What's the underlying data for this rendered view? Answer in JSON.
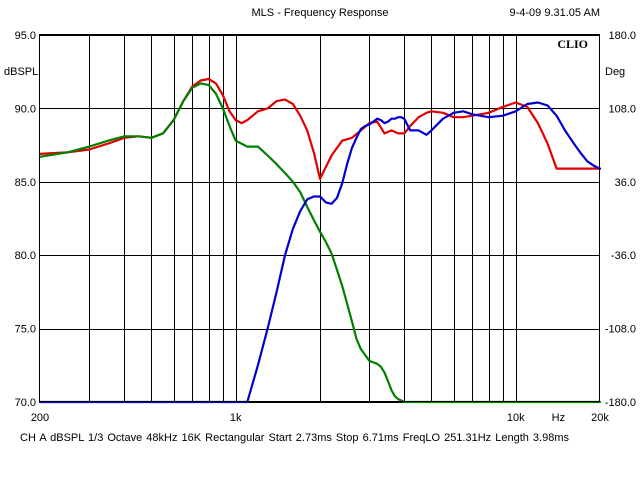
{
  "header": {
    "title": "MLS - Frequency Response",
    "timestamp": "9-4-09 9.31.05 AM"
  },
  "brand": "CLIO",
  "axes": {
    "left_unit": "dBSPL",
    "right_unit": "Deg"
  },
  "footer": {
    "text": "CH A   dBSPL   1/3 Octave   48kHz   16K   Rectangular   Start 2.73ms   Stop 6.71ms   FreqLO 251.31Hz   Length 3.98ms"
  },
  "colors": {
    "red": "#e00000",
    "green": "#008000",
    "blue": "#0000d0",
    "grid": "#000000"
  },
  "chart_data": {
    "type": "line",
    "title": "MLS - Frequency Response",
    "xlabel": "Hz",
    "ylabel": "dBSPL",
    "y2label": "Deg",
    "xscale": "log",
    "xlim": [
      200,
      20000
    ],
    "ylim": [
      70,
      95
    ],
    "y2lim": [
      -180,
      180
    ],
    "grid": true,
    "x_tick_labels": [
      {
        "value": 200,
        "label": "200"
      },
      {
        "value": 1000,
        "label": "1k"
      },
      {
        "value": 10000,
        "label": "10k"
      },
      {
        "value": 14200,
        "label": "Hz"
      },
      {
        "value": 20000,
        "label": "20k"
      }
    ],
    "x_gridlines": [
      300,
      400,
      500,
      600,
      700,
      800,
      900,
      1000,
      2000,
      3000,
      4000,
      5000,
      6000,
      7000,
      8000,
      9000,
      10000
    ],
    "y_ticks": [
      "70.0",
      "75.0",
      "80.0",
      "85.0",
      "90.0",
      "95.0"
    ],
    "y2_ticks": [
      "-180.0",
      "-108.0",
      "-36.0",
      "36.0",
      "108.0",
      "180.0"
    ],
    "series": [
      {
        "color": "red",
        "x": [
          200,
          250,
          300,
          350,
          400,
          450,
          500,
          550,
          600,
          650,
          700,
          750,
          800,
          850,
          900,
          950,
          1000,
          1050,
          1100,
          1150,
          1200,
          1300,
          1400,
          1500,
          1600,
          1700,
          1800,
          1900,
          2000,
          2200,
          2400,
          2600,
          2800,
          3000,
          3200,
          3400,
          3600,
          3800,
          4000,
          4200,
          4500,
          4800,
          5000,
          5500,
          6000,
          6500,
          7000,
          8000,
          9000,
          10000,
          11000,
          12000,
          13000,
          14000,
          15000,
          16000,
          17000,
          18000,
          19000,
          20000
        ],
        "values": [
          86.9,
          87.0,
          87.2,
          87.6,
          88.0,
          88.1,
          88.0,
          88.3,
          89.2,
          90.5,
          91.5,
          91.9,
          92.0,
          91.7,
          90.9,
          89.8,
          89.2,
          89.0,
          89.2,
          89.5,
          89.8,
          90.0,
          90.5,
          90.6,
          90.3,
          89.5,
          88.5,
          87.0,
          85.2,
          86.8,
          87.8,
          88.0,
          88.5,
          89.0,
          89.1,
          88.3,
          88.5,
          88.3,
          88.3,
          88.8,
          89.4,
          89.7,
          89.8,
          89.7,
          89.4,
          89.4,
          89.5,
          89.7,
          90.1,
          90.4,
          90.1,
          89.0,
          87.6,
          85.9,
          85.9,
          85.9,
          85.9,
          85.9,
          85.9,
          85.9
        ]
      },
      {
        "color": "green",
        "x": [
          200,
          250,
          300,
          350,
          400,
          450,
          500,
          550,
          600,
          650,
          700,
          750,
          800,
          850,
          900,
          950,
          1000,
          1100,
          1200,
          1300,
          1400,
          1500,
          1600,
          1700,
          1800,
          1900,
          2000,
          2100,
          2200,
          2300,
          2400,
          2500,
          2600,
          2700,
          2800,
          2900,
          3000,
          3100,
          3200,
          3300,
          3400,
          3500,
          3600,
          3700,
          3800,
          3900,
          4000,
          4100,
          20000
        ],
        "values": [
          86.7,
          87.0,
          87.4,
          87.8,
          88.1,
          88.1,
          88.0,
          88.3,
          89.2,
          90.5,
          91.4,
          91.7,
          91.6,
          91.0,
          90.0,
          88.8,
          87.8,
          87.4,
          87.4,
          86.8,
          86.2,
          85.6,
          85.0,
          84.3,
          83.3,
          82.4,
          81.6,
          80.9,
          80.1,
          79.0,
          77.9,
          76.7,
          75.5,
          74.3,
          73.6,
          73.2,
          72.8,
          72.7,
          72.6,
          72.4,
          72.0,
          71.4,
          70.8,
          70.4,
          70.2,
          70.1,
          70.0,
          70.0,
          70.0
        ]
      },
      {
        "color": "blue",
        "x": [
          200,
          1100,
          1200,
          1300,
          1400,
          1500,
          1600,
          1700,
          1800,
          1900,
          2000,
          2100,
          2200,
          2300,
          2400,
          2500,
          2600,
          2700,
          2800,
          2900,
          3000,
          3100,
          3200,
          3300,
          3400,
          3500,
          3600,
          3700,
          3800,
          3900,
          4000,
          4200,
          4500,
          4800,
          5000,
          5500,
          6000,
          6500,
          7000,
          8000,
          9000,
          10000,
          11000,
          12000,
          13000,
          14000,
          15000,
          16000,
          17000,
          18000,
          19000,
          20000
        ],
        "values": [
          70.0,
          70.0,
          72.5,
          75.0,
          77.5,
          80.0,
          81.8,
          83.0,
          83.8,
          84.0,
          84.0,
          83.6,
          83.5,
          83.9,
          84.9,
          86.2,
          87.3,
          88.0,
          88.6,
          88.8,
          88.9,
          89.1,
          89.3,
          89.2,
          89.0,
          89.1,
          89.3,
          89.3,
          89.4,
          89.4,
          89.3,
          88.5,
          88.5,
          88.2,
          88.5,
          89.3,
          89.7,
          89.8,
          89.6,
          89.4,
          89.5,
          89.8,
          90.3,
          90.4,
          90.2,
          89.5,
          88.5,
          87.7,
          87.0,
          86.4,
          86.1,
          85.9
        ]
      }
    ]
  }
}
